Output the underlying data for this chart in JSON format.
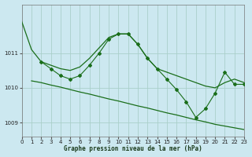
{
  "bg_color": "#cce8f0",
  "grid_color": "#aacfca",
  "line_color": "#1a6e1a",
  "xlabel": "Graphe pression niveau de la mer (hPa)",
  "xlim": [
    0,
    23
  ],
  "ylim": [
    1008.6,
    1012.4
  ],
  "yticks": [
    1009,
    1010,
    1011
  ],
  "xticks": [
    0,
    1,
    2,
    3,
    4,
    5,
    6,
    7,
    8,
    9,
    10,
    11,
    12,
    13,
    14,
    15,
    16,
    17,
    18,
    19,
    20,
    21,
    22,
    23
  ],
  "line1_x": [
    0,
    1,
    2,
    3,
    4,
    5,
    6,
    7,
    8,
    9,
    10,
    11,
    12,
    13,
    14,
    15,
    16,
    17,
    18,
    19,
    20,
    21,
    22,
    23
  ],
  "line1_y": [
    1011.9,
    1011.1,
    1010.75,
    1010.65,
    1010.55,
    1010.5,
    1010.6,
    1010.85,
    1011.15,
    1011.45,
    1011.55,
    1011.55,
    1011.25,
    1010.85,
    1010.55,
    1010.45,
    1010.35,
    1010.25,
    1010.15,
    1010.05,
    1010.0,
    1010.15,
    1010.25,
    1010.15
  ],
  "line2_x": [
    2,
    3,
    4,
    5,
    6,
    7,
    8,
    9,
    10,
    11,
    12,
    13,
    14,
    15,
    16,
    17,
    18,
    19,
    20,
    21,
    22,
    23
  ],
  "line2_y": [
    1010.75,
    1010.55,
    1010.35,
    1010.25,
    1010.35,
    1010.65,
    1011.0,
    1011.4,
    1011.55,
    1011.55,
    1011.25,
    1010.85,
    1010.55,
    1010.25,
    1009.95,
    1009.6,
    1009.15,
    1009.4,
    1009.85,
    1010.45,
    1010.1,
    1010.1
  ],
  "line3_x": [
    1,
    2,
    3,
    4,
    5,
    6,
    7,
    8,
    9,
    10,
    11,
    12,
    13,
    14,
    15,
    16,
    17,
    18,
    19,
    20,
    21,
    22,
    23
  ],
  "line3_y": [
    1010.2,
    1010.15,
    1010.08,
    1010.02,
    1009.95,
    1009.88,
    1009.82,
    1009.75,
    1009.68,
    1009.62,
    1009.55,
    1009.48,
    1009.42,
    1009.35,
    1009.28,
    1009.22,
    1009.15,
    1009.08,
    1009.02,
    1008.95,
    1008.9,
    1008.85,
    1008.8
  ]
}
